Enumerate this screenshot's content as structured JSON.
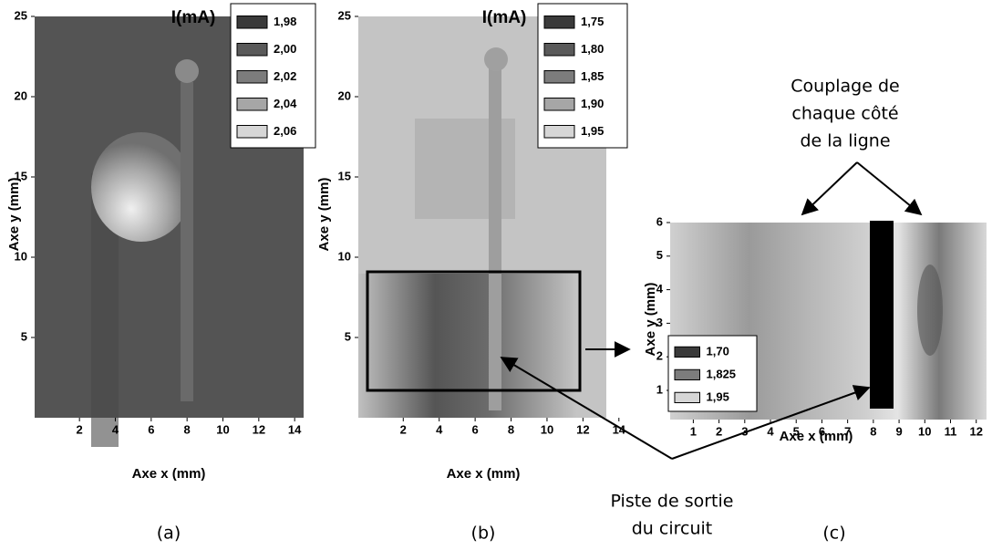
{
  "chart_data": [
    {
      "type": "heatmap",
      "panel_label": "(a)",
      "x_label": "Axe x (mm)",
      "y_label": "Axe y (mm)",
      "xlim": [
        -0.5,
        14.5
      ],
      "xticks": [
        2,
        4,
        6,
        8,
        10,
        12,
        14
      ],
      "ylim": [
        0,
        25
      ],
      "yticks": [
        5,
        10,
        15,
        20,
        25
      ],
      "legend_title": "I(mA)",
      "levels": [
        {
          "value": 1.98,
          "label": "1,98"
        },
        {
          "value": 2.0,
          "label": "2,00"
        },
        {
          "value": 2.02,
          "label": "2,02"
        },
        {
          "value": 2.04,
          "label": "2,04"
        },
        {
          "value": 2.06,
          "label": "2,06"
        }
      ],
      "colors": [
        "#3a3a3a",
        "#5a5a5a",
        "#7c7c7c",
        "#a6a6a6",
        "#d6d6d6"
      ]
    },
    {
      "type": "heatmap",
      "panel_label": "(b)",
      "x_label": "Axe x (mm)",
      "y_label": "Axe y (mm)",
      "xlim": [
        -0.5,
        13.3
      ],
      "xticks": [
        2,
        4,
        6,
        8,
        10,
        12,
        14
      ],
      "ylim": [
        0,
        25
      ],
      "yticks": [
        5,
        10,
        15,
        20,
        25
      ],
      "legend_title": "I(mA)",
      "levels": [
        {
          "value": 1.75,
          "label": "1,75"
        },
        {
          "value": 1.8,
          "label": "1,80"
        },
        {
          "value": 1.85,
          "label": "1,85"
        },
        {
          "value": 1.9,
          "label": "1,90"
        },
        {
          "value": 1.95,
          "label": "1,95"
        }
      ],
      "colors": [
        "#3a3a3a",
        "#5a5a5a",
        "#7c7c7c",
        "#a6a6a6",
        "#d6d6d6"
      ]
    },
    {
      "type": "heatmap",
      "panel_label": "(c)",
      "x_label": "Axe x (mm)",
      "y_label": "Axe y (mm)",
      "xlim": [
        0.1,
        12.4
      ],
      "xticks": [
        1,
        2,
        3,
        4,
        5,
        6,
        7,
        8,
        9,
        10,
        11,
        12
      ],
      "ylim": [
        0.13,
        6
      ],
      "yticks": [
        1,
        2,
        3,
        4,
        5,
        6
      ],
      "levels": [
        {
          "value": 1.7,
          "label": "1,70"
        },
        {
          "value": 1.825,
          "label": "1,825"
        },
        {
          "value": 1.95,
          "label": "1,95"
        }
      ],
      "colors": [
        "#3a3a3a",
        "#7c7c7c",
        "#d6d6d6"
      ],
      "annotations": [
        {
          "text": [
            "Couplage de",
            "chaque côté",
            "de la ligne"
          ]
        },
        {
          "text": [
            "Piste de sortie",
            "du circuit"
          ]
        }
      ]
    }
  ]
}
